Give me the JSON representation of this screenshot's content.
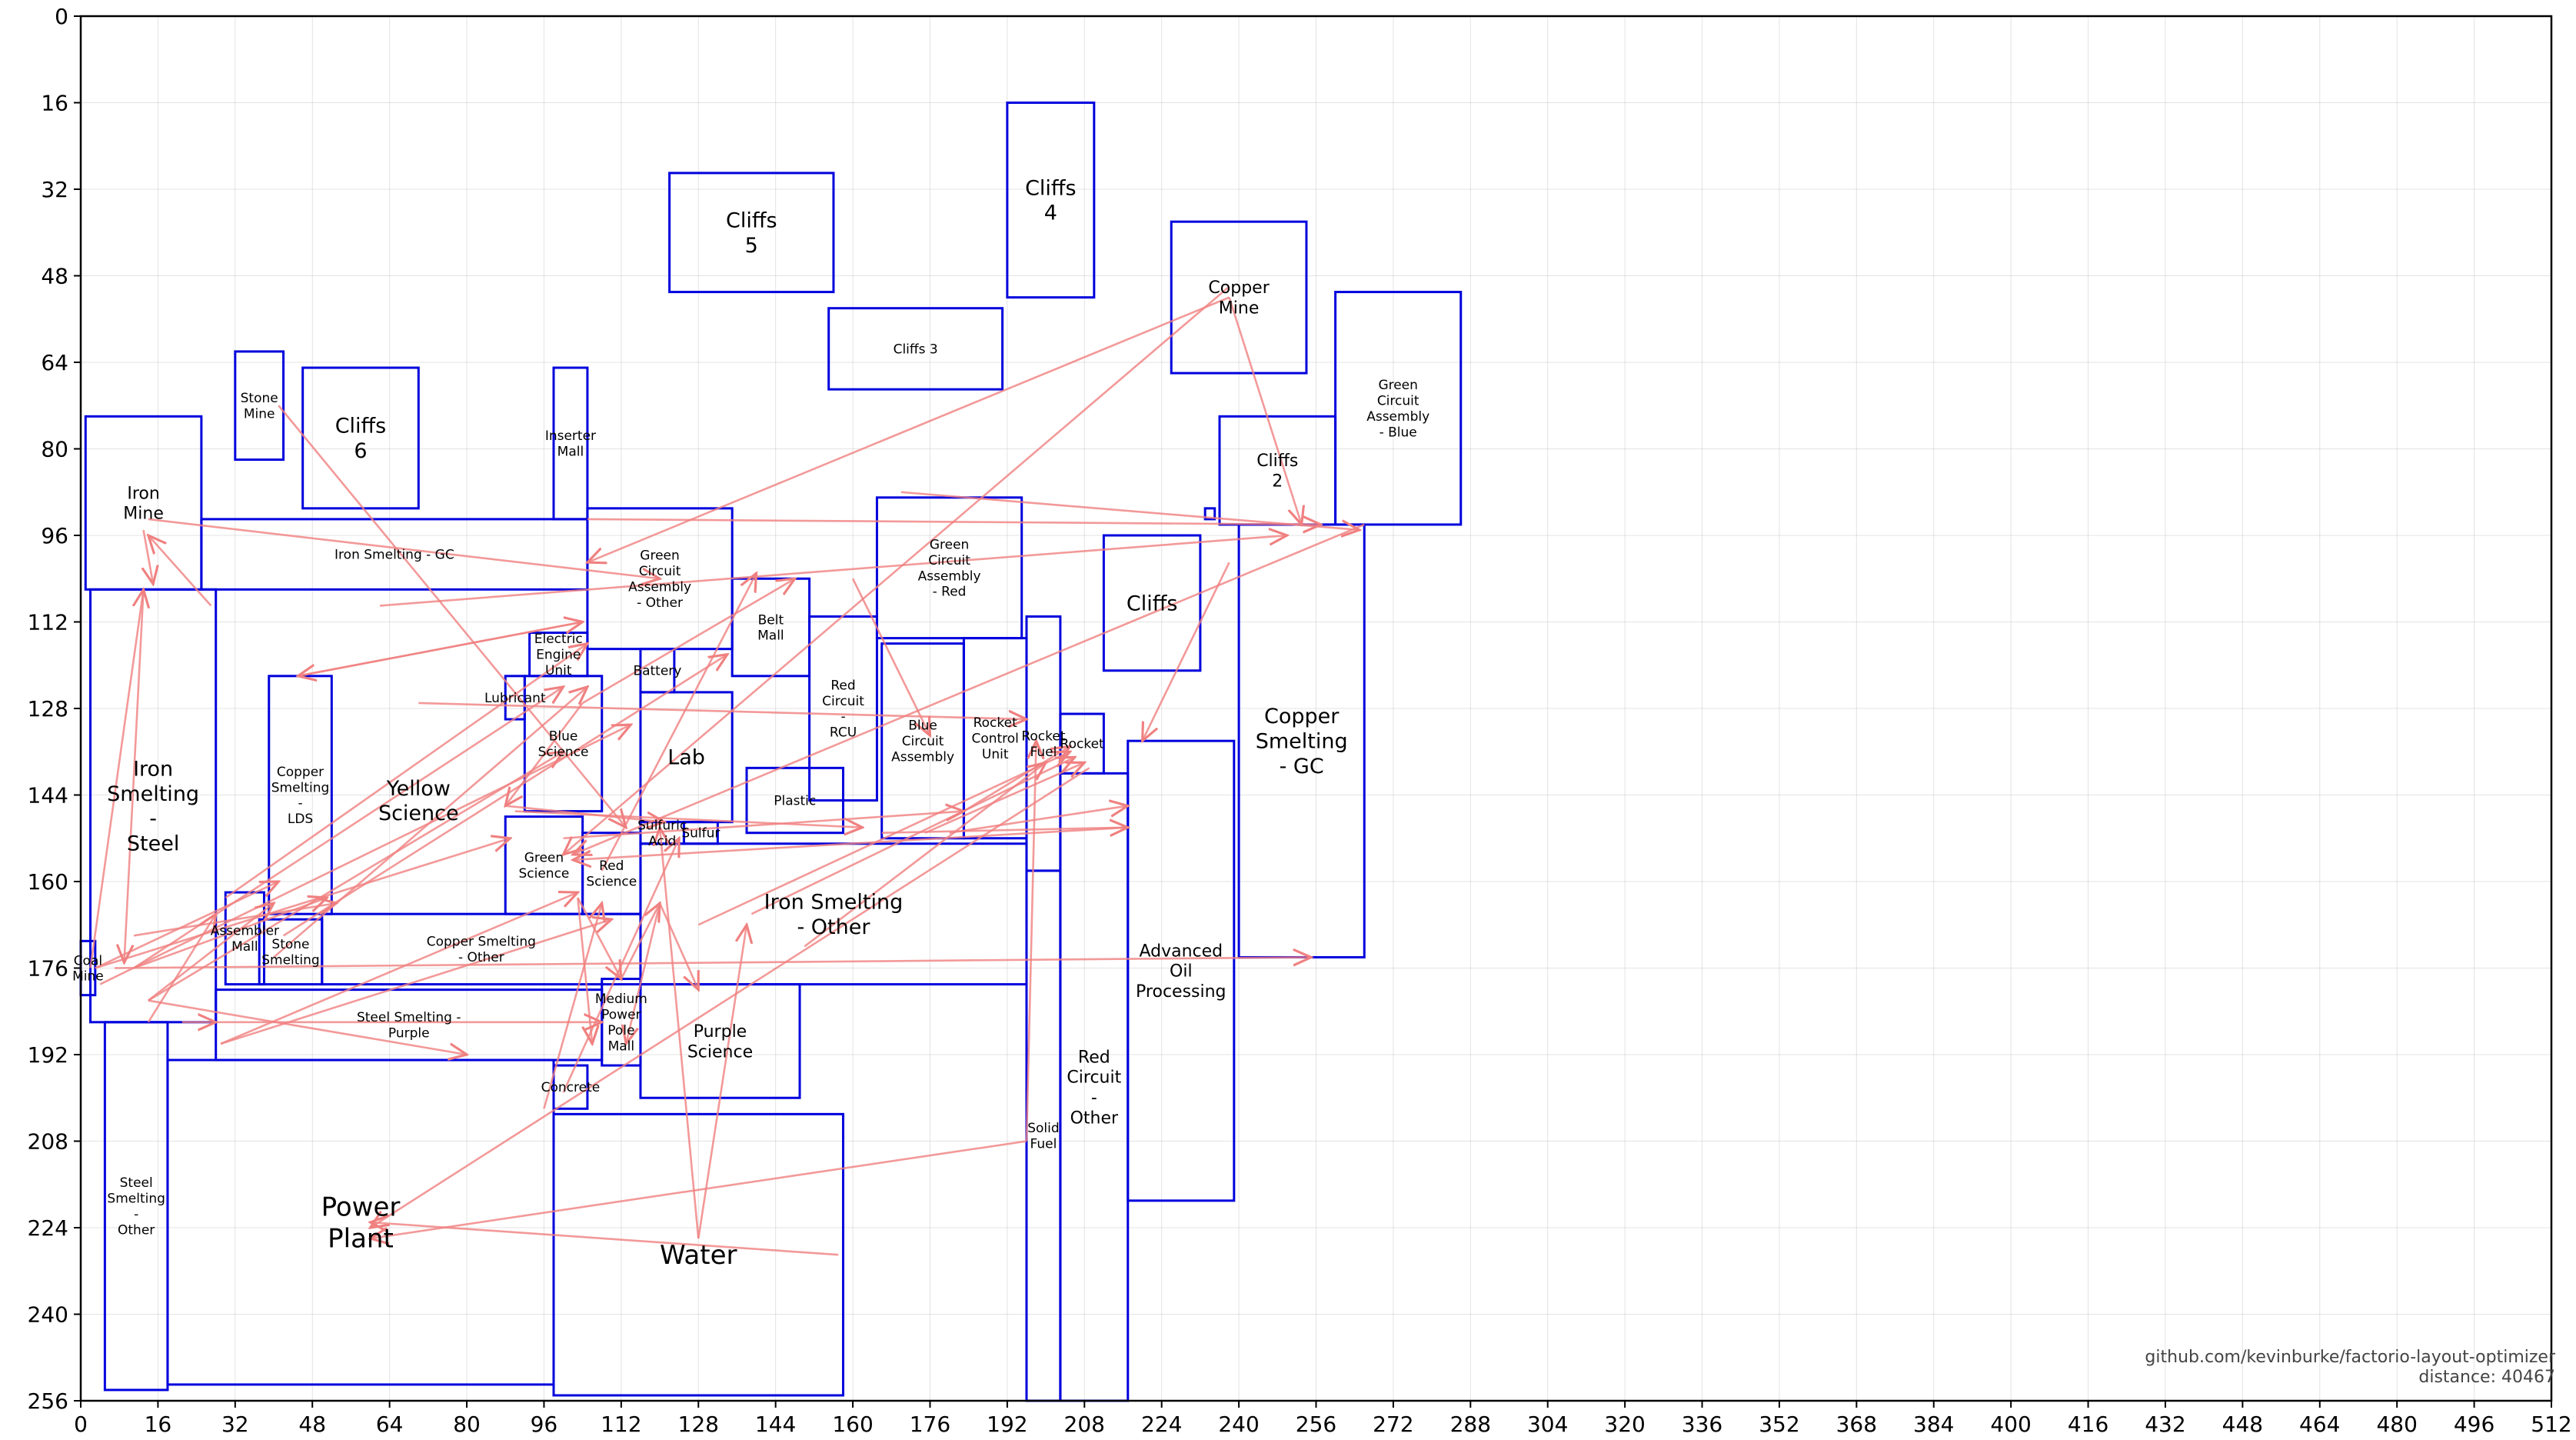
{
  "chart_data": {
    "type": "layout",
    "x_range": [
      0,
      512
    ],
    "y_range": [
      0,
      256
    ],
    "y_inverted": true,
    "grid": true,
    "x_ticks": [
      0,
      16,
      32,
      48,
      64,
      80,
      96,
      112,
      128,
      144,
      160,
      176,
      192,
      208,
      224,
      240,
      256,
      272,
      288,
      304,
      320,
      336,
      352,
      368,
      384,
      400,
      416,
      432,
      448,
      464,
      480,
      496,
      512
    ],
    "y_ticks": [
      0,
      16,
      32,
      48,
      64,
      80,
      96,
      112,
      128,
      144,
      160,
      176,
      192,
      208,
      224,
      240,
      256
    ],
    "blocks": [
      {
        "name": "Cliffs 5",
        "label": "Cliffs\n5",
        "x": 122,
        "y": 29,
        "w": 34,
        "h": 22,
        "size": "m"
      },
      {
        "name": "Cliffs 4",
        "label": "Cliffs\n4",
        "x": 192,
        "y": 16,
        "w": 18,
        "h": 36,
        "size": "m"
      },
      {
        "name": "Copper Mine",
        "label": "Copper\nMine",
        "x": 226,
        "y": 38,
        "w": 28,
        "h": 28,
        "size": "s"
      },
      {
        "name": "Green Circuit Assembly - Blue",
        "label": "Green\nCircuit\nAssembly\n- Blue",
        "x": 260,
        "y": 51,
        "w": 26,
        "h": 43,
        "size": "xs"
      },
      {
        "name": "Cliffs 3",
        "label": "Cliffs 3",
        "x": 155,
        "y": 54,
        "w": 36,
        "h": 15,
        "size": "xs"
      },
      {
        "name": "Stone Mine",
        "label": "Stone\nMine",
        "x": 32,
        "y": 62,
        "w": 10,
        "h": 20,
        "size": "xs"
      },
      {
        "name": "Cliffs 6",
        "label": "Cliffs\n6",
        "x": 46,
        "y": 65,
        "w": 24,
        "h": 26,
        "size": "m"
      },
      {
        "name": "Inserter Mall",
        "label": "Inserter\nMall",
        "x": 98,
        "y": 65,
        "w": 7,
        "h": 28,
        "size": "xs"
      },
      {
        "name": "Iron Mine",
        "label": "Iron\nMine",
        "x": 1,
        "y": 74,
        "w": 24,
        "h": 32,
        "size": "s"
      },
      {
        "name": "Cliffs 2",
        "label": "Cliffs\n2",
        "x": 236,
        "y": 74,
        "w": 24,
        "h": 20,
        "size": "s"
      },
      {
        "name": "Iron Smelting - GC",
        "label": "Iron Smelting - GC",
        "x": 25,
        "y": 93,
        "w": 80,
        "h": 13,
        "size": "xs"
      },
      {
        "name": "Green Circuit Assembly - Other",
        "label": "Green\nCircuit\nAssembly\n- Other",
        "x": 105,
        "y": 91,
        "w": 30,
        "h": 26,
        "size": "xs"
      },
      {
        "name": "Green Circuit Assembly - Red",
        "label": "Green\nCircuit\nAssembly\n- Red",
        "x": 165,
        "y": 89,
        "w": 30,
        "h": 26,
        "size": "xs"
      },
      {
        "name": "Copper Smelting - GC",
        "label": "Copper\nSmelting\n- GC",
        "x": 240,
        "y": 94,
        "w": 26,
        "h": 80,
        "size": "m"
      },
      {
        "name": "Cliffs",
        "label": "Cliffs",
        "x": 212,
        "y": 96,
        "w": 20,
        "h": 25,
        "size": "m"
      },
      {
        "name": "Belt Mall",
        "label": "Belt\nMall",
        "x": 135,
        "y": 104,
        "w": 16,
        "h": 18,
        "size": "xs"
      },
      {
        "name": "Iron Smelting - Steel",
        "label": "Iron\nSmelting\n-\nSteel",
        "x": 2,
        "y": 106,
        "w": 26,
        "h": 80,
        "size": "m"
      },
      {
        "name": "Electric Engine Unit",
        "label": "Electric\nEngine\nUnit",
        "x": 93,
        "y": 114,
        "w": 12,
        "h": 8,
        "size": "xs"
      },
      {
        "name": "Red Circuit - RCU",
        "label": "Red\nCircuit\n-\nRCU",
        "x": 151,
        "y": 111,
        "w": 14,
        "h": 34,
        "size": "xs"
      },
      {
        "name": "Blue Circuit Assembly",
        "label": "Blue\nCircuit\nAssembly",
        "x": 166,
        "y": 116,
        "w": 17,
        "h": 36,
        "size": "xs"
      },
      {
        "name": "Rocket Control Unit",
        "label": "Rocket\nControl\nUnit",
        "x": 183,
        "y": 115,
        "w": 13,
        "h": 37,
        "size": "xs"
      },
      {
        "name": "Battery",
        "label": "Battery",
        "x": 116,
        "y": 117,
        "w": 7,
        "h": 8,
        "size": "xs"
      },
      {
        "name": "Lubricant",
        "label": "Lubricant",
        "x": 88,
        "y": 122,
        "w": 4,
        "h": 8,
        "size": "xs"
      },
      {
        "name": "Copper Smelting - LDS",
        "label": "Copper\nSmelting\n-\nLDS",
        "x": 39,
        "y": 122,
        "w": 13,
        "h": 44,
        "size": "xs"
      },
      {
        "name": "Blue Science",
        "label": "Blue\nScience",
        "x": 92,
        "y": 122,
        "w": 16,
        "h": 25,
        "size": "xs"
      },
      {
        "name": "Lab",
        "label": "Lab",
        "x": 116,
        "y": 125,
        "w": 19,
        "h": 24,
        "size": "m"
      },
      {
        "name": "Rocket Fuel",
        "label": "Rocket\nFuel",
        "x": 196,
        "y": 111,
        "w": 7,
        "h": 47,
        "size": "xs"
      },
      {
        "name": "Rocket",
        "label": "Rocket",
        "x": 203,
        "y": 129,
        "w": 9,
        "h": 11,
        "size": "xs"
      },
      {
        "name": "Plastic",
        "label": "Plastic",
        "x": 138,
        "y": 139,
        "w": 20,
        "h": 12,
        "size": "xs"
      },
      {
        "name": "Sulfur",
        "label": "Sulfur",
        "x": 125,
        "y": 149,
        "w": 7,
        "h": 4,
        "size": "xs"
      },
      {
        "name": "Sulfuric Acid",
        "label": "Sulfuric\nAcid",
        "x": 116,
        "y": 149,
        "w": 9,
        "h": 4,
        "size": "xs"
      },
      {
        "name": "Yellow Science",
        "label": "Yellow\nScience",
        "x": 70,
        "y": 145,
        "w": 0,
        "h": 0,
        "size": "m"
      },
      {
        "name": "Green Science",
        "label": "Green\nScience",
        "x": 88,
        "y": 148,
        "w": 16,
        "h": 18,
        "size": "xs"
      },
      {
        "name": "Red Science",
        "label": "Red\nScience",
        "x": 104,
        "y": 151,
        "w": 12,
        "h": 15,
        "size": "xs"
      },
      {
        "name": "Iron Smelting - Other",
        "label": "Iron Smelting\n- Other",
        "x": 116,
        "y": 153,
        "w": 80,
        "h": 26,
        "size": "m"
      },
      {
        "name": "Assembler Mall",
        "label": "Assembler\nMall",
        "x": 30,
        "y": 162,
        "w": 8,
        "h": 17,
        "size": "xs"
      },
      {
        "name": "Stone Smelting",
        "label": "Stone\nSmelting",
        "x": 37,
        "y": 167,
        "w": 13,
        "h": 12,
        "size": "xs"
      },
      {
        "name": "Copper Smelting - Other",
        "label": "Copper Smelting\n- Other",
        "x": 50,
        "y": 166,
        "w": 66,
        "h": 13,
        "size": "xs"
      },
      {
        "name": "Coal Mine",
        "label": "Coal\nMine",
        "x": 0,
        "y": 171,
        "w": 3,
        "h": 10,
        "size": "xs"
      },
      {
        "name": "Advanced Oil Processing",
        "label": "Advanced\nOil\nProcessing",
        "x": 217,
        "y": 134,
        "w": 22,
        "h": 85,
        "size": "s"
      },
      {
        "name": "Steel Smelting - Purple",
        "label": "Steel Smelting -\nPurple",
        "x": 28,
        "y": 180,
        "w": 80,
        "h": 13,
        "size": "xs"
      },
      {
        "name": "Medium Power Pole Mall",
        "label": "Medium\nPower\nPole\nMall",
        "x": 108,
        "y": 178,
        "w": 8,
        "h": 16,
        "size": "xs"
      },
      {
        "name": "Purple Science",
        "label": "Purple\nScience",
        "x": 116,
        "y": 179,
        "w": 33,
        "h": 21,
        "size": "s"
      },
      {
        "name": "Concrete",
        "label": "Concrete",
        "x": 98,
        "y": 194,
        "w": 7,
        "h": 8,
        "size": "xs"
      },
      {
        "name": "Steel Smelting - Other",
        "label": "Steel\nSmelting\n-\nOther",
        "x": 5,
        "y": 186,
        "w": 13,
        "h": 68,
        "size": "xs"
      },
      {
        "name": "Power Plant",
        "label": "Power\nPlant",
        "x": 18,
        "y": 193,
        "w": 80,
        "h": 60,
        "size": "l"
      },
      {
        "name": "Water",
        "label": "Water",
        "x": 98,
        "y": 203,
        "w": 60,
        "h": 52,
        "size": "l"
      },
      {
        "name": "Solid Fuel",
        "label": "Solid\nFuel",
        "x": 196,
        "y": 158,
        "w": 7,
        "h": 98,
        "size": "xs"
      },
      {
        "name": "Red Circuit - Other",
        "label": "Red\nCircuit\n-\nOther",
        "x": 203,
        "y": 140,
        "w": 14,
        "h": 116,
        "size": "s"
      },
      {
        "name": "Small block",
        "label": "",
        "x": 233,
        "y": 91,
        "w": 2,
        "h": 2,
        "size": "xs"
      }
    ],
    "connections": [
      [
        14,
        93,
        120,
        104
      ],
      [
        13,
        95,
        15,
        105
      ],
      [
        13,
        106,
        9,
        175
      ],
      [
        27,
        109,
        14,
        96
      ],
      [
        11,
        170,
        53,
        164
      ],
      [
        11,
        176,
        51,
        163
      ],
      [
        14,
        186,
        28,
        166
      ],
      [
        2,
        176,
        13,
        106
      ],
      [
        14,
        182,
        40,
        164
      ],
      [
        3,
        176,
        41,
        160
      ],
      [
        3,
        176,
        89,
        152
      ],
      [
        41,
        72,
        113,
        150
      ],
      [
        11,
        176,
        100,
        124
      ],
      [
        14,
        182,
        100,
        136
      ],
      [
        40,
        174,
        105,
        124
      ],
      [
        42,
        170,
        134,
        118
      ],
      [
        29,
        190,
        103,
        162
      ],
      [
        29,
        190,
        110,
        167
      ],
      [
        7,
        176,
        255,
        174
      ],
      [
        4,
        179,
        114,
        131
      ],
      [
        30,
        163,
        105,
        116
      ],
      [
        62,
        109,
        250,
        96
      ],
      [
        238,
        52,
        105,
        101
      ],
      [
        238,
        52,
        253,
        94
      ],
      [
        105,
        93,
        257,
        94
      ],
      [
        170,
        88,
        265,
        95
      ],
      [
        266,
        94,
        102,
        155
      ],
      [
        238,
        101,
        220,
        134
      ],
      [
        70,
        127,
        196,
        130
      ],
      [
        45,
        122,
        104,
        112
      ],
      [
        104,
        112,
        45,
        122
      ],
      [
        88,
        146,
        121,
        149
      ],
      [
        104,
        127,
        88,
        146
      ],
      [
        104,
        127,
        148,
        104
      ],
      [
        90,
        147,
        162,
        150
      ],
      [
        100,
        152,
        183,
        147
      ],
      [
        108,
        158,
        140,
        103
      ],
      [
        103,
        163,
        112,
        178
      ],
      [
        103,
        163,
        106,
        190
      ],
      [
        112,
        178,
        120,
        164
      ],
      [
        120,
        164,
        113,
        190
      ],
      [
        120,
        164,
        128,
        180
      ],
      [
        128,
        226,
        120,
        150
      ],
      [
        128,
        226,
        138,
        168
      ],
      [
        100,
        199,
        124,
        152
      ],
      [
        96,
        202,
        108,
        164
      ],
      [
        157,
        229,
        60,
        223
      ],
      [
        196,
        208,
        60,
        226
      ],
      [
        196,
        208,
        198,
        134
      ],
      [
        209,
        139,
        60,
        224
      ],
      [
        160,
        104,
        176,
        133
      ],
      [
        175,
        151,
        208,
        138
      ],
      [
        180,
        151,
        217,
        146
      ],
      [
        166,
        151,
        217,
        150
      ],
      [
        183,
        147,
        205,
        135
      ],
      [
        128,
        168,
        205,
        136
      ],
      [
        150,
        172,
        200,
        138
      ],
      [
        139,
        166,
        206,
        137
      ],
      [
        238,
        50,
        100,
        155
      ],
      [
        217,
        150,
        102,
        156
      ],
      [
        14,
        182,
        80,
        192
      ],
      [
        28,
        186,
        108,
        186
      ],
      [
        21,
        186,
        28,
        186
      ]
    ]
  },
  "credit": {
    "line1": "github.com/kevinburke/factorio-layout-optimizer",
    "line2": "distance: 40467"
  },
  "colors": {
    "block": "#0000dd",
    "connection": "#f08080",
    "grid": "#b0b0b0"
  }
}
